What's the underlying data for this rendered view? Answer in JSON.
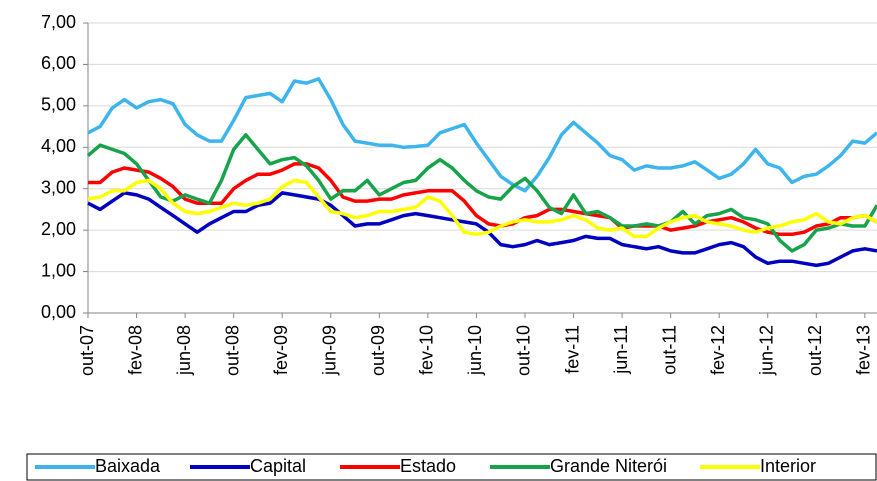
{
  "chart_data": {
    "type": "line",
    "categories": [
      "out-07",
      null,
      null,
      null,
      "fev-08",
      null,
      null,
      null,
      "jun-08",
      null,
      null,
      null,
      "out-08",
      null,
      null,
      null,
      "fev-09",
      null,
      null,
      null,
      "jun-09",
      null,
      null,
      null,
      "out-09",
      null,
      null,
      null,
      "fev-10",
      null,
      null,
      null,
      "jun-10",
      null,
      null,
      null,
      "out-10",
      null,
      null,
      null,
      "fev-11",
      null,
      null,
      null,
      "jun-11",
      null,
      null,
      null,
      "out-11",
      null,
      null,
      null,
      "fev-12",
      null,
      null,
      null,
      "jun-12",
      null,
      null,
      null,
      "out-12",
      null,
      null,
      null,
      "fev-13",
      null
    ],
    "series": [
      {
        "name": "Baixada",
        "color": "#3db5ec",
        "values": [
          4.35,
          4.5,
          4.95,
          5.15,
          4.95,
          5.1,
          5.15,
          5.05,
          4.55,
          4.3,
          4.15,
          4.15,
          4.65,
          5.2,
          5.25,
          5.3,
          5.1,
          5.6,
          5.55,
          5.65,
          5.15,
          4.55,
          4.15,
          4.1,
          4.05,
          4.05,
          4.0,
          4.02,
          4.05,
          4.35,
          4.45,
          4.55,
          4.1,
          3.7,
          3.3,
          3.1,
          2.95,
          3.3,
          3.75,
          4.3,
          4.6,
          4.35,
          4.1,
          3.8,
          3.7,
          3.45,
          3.55,
          3.5,
          3.5,
          3.55,
          3.65,
          3.45,
          3.25,
          3.35,
          3.6,
          3.95,
          3.6,
          3.5,
          3.15,
          3.3,
          3.35,
          3.55,
          3.8,
          4.15,
          4.1,
          4.35
        ]
      },
      {
        "name": "Capital",
        "color": "#0000c0",
        "values": [
          2.65,
          2.5,
          2.7,
          2.9,
          2.85,
          2.75,
          2.55,
          2.35,
          2.15,
          1.95,
          2.15,
          2.3,
          2.45,
          2.45,
          2.6,
          2.65,
          2.9,
          2.85,
          2.8,
          2.75,
          2.6,
          2.35,
          2.1,
          2.15,
          2.15,
          2.25,
          2.35,
          2.4,
          2.35,
          2.3,
          2.25,
          2.2,
          2.15,
          1.95,
          1.65,
          1.6,
          1.65,
          1.75,
          1.65,
          1.7,
          1.75,
          1.85,
          1.8,
          1.8,
          1.65,
          1.6,
          1.55,
          1.6,
          1.5,
          1.45,
          1.45,
          1.55,
          1.65,
          1.7,
          1.6,
          1.35,
          1.2,
          1.25,
          1.25,
          1.2,
          1.15,
          1.2,
          1.35,
          1.5,
          1.55,
          1.5
        ]
      },
      {
        "name": "Estado",
        "color": "#ff0000",
        "values": [
          3.15,
          3.15,
          3.4,
          3.5,
          3.45,
          3.4,
          3.25,
          3.05,
          2.75,
          2.65,
          2.65,
          2.65,
          3.0,
          3.2,
          3.35,
          3.35,
          3.45,
          3.6,
          3.6,
          3.5,
          3.2,
          2.8,
          2.7,
          2.7,
          2.75,
          2.75,
          2.85,
          2.9,
          2.95,
          2.95,
          2.95,
          2.7,
          2.35,
          2.15,
          2.1,
          2.15,
          2.3,
          2.35,
          2.5,
          2.5,
          2.45,
          2.4,
          2.35,
          2.3,
          2.05,
          2.1,
          2.1,
          2.1,
          2.0,
          2.05,
          2.1,
          2.2,
          2.25,
          2.3,
          2.2,
          2.05,
          1.95,
          1.9,
          1.9,
          1.95,
          2.1,
          2.15,
          2.3,
          2.3,
          2.35,
          2.2
        ]
      },
      {
        "name": "Grande Niterói",
        "color": "#17a34a",
        "values": [
          3.8,
          4.05,
          3.95,
          3.85,
          3.6,
          3.2,
          2.8,
          2.7,
          2.85,
          2.75,
          2.65,
          3.2,
          3.95,
          4.3,
          3.95,
          3.6,
          3.7,
          3.75,
          3.55,
          3.2,
          2.75,
          2.95,
          2.95,
          3.2,
          2.85,
          3.0,
          3.15,
          3.2,
          3.5,
          3.7,
          3.5,
          3.2,
          2.95,
          2.8,
          2.75,
          3.05,
          3.25,
          2.95,
          2.55,
          2.4,
          2.85,
          2.4,
          2.45,
          2.3,
          2.1,
          2.1,
          2.15,
          2.1,
          2.2,
          2.45,
          2.15,
          2.35,
          2.4,
          2.5,
          2.3,
          2.25,
          2.15,
          1.75,
          1.5,
          1.65,
          2.0,
          2.05,
          2.15,
          2.1,
          2.1,
          2.6
        ]
      },
      {
        "name": "Interior",
        "color": "#ffff00",
        "values": [
          2.75,
          2.8,
          2.95,
          2.95,
          3.15,
          3.2,
          3.0,
          2.65,
          2.45,
          2.4,
          2.45,
          2.55,
          2.65,
          2.6,
          2.65,
          2.75,
          3.05,
          3.2,
          3.15,
          2.8,
          2.45,
          2.4,
          2.3,
          2.35,
          2.45,
          2.45,
          2.5,
          2.55,
          2.8,
          2.7,
          2.35,
          1.95,
          1.9,
          1.95,
          2.1,
          2.2,
          2.25,
          2.2,
          2.2,
          2.25,
          2.35,
          2.25,
          2.05,
          2.0,
          2.05,
          1.85,
          1.85,
          2.05,
          2.2,
          2.3,
          2.35,
          2.2,
          2.15,
          2.1,
          2.0,
          1.95,
          2.05,
          2.1,
          2.2,
          2.25,
          2.4,
          2.2,
          2.15,
          2.3,
          2.35,
          2.2
        ]
      }
    ],
    "ylim": [
      0,
      7
    ],
    "yticks": [
      {
        "value": 0,
        "label": "0,00"
      },
      {
        "value": 1,
        "label": "1,00"
      },
      {
        "value": 2,
        "label": "2,00"
      },
      {
        "value": 3,
        "label": "3,00"
      },
      {
        "value": 4,
        "label": "4,00"
      },
      {
        "value": 5,
        "label": "5,00"
      },
      {
        "value": 6,
        "label": "6,00"
      },
      {
        "value": 7,
        "label": "7,00"
      }
    ],
    "grid": true,
    "legend": "bottom"
  }
}
